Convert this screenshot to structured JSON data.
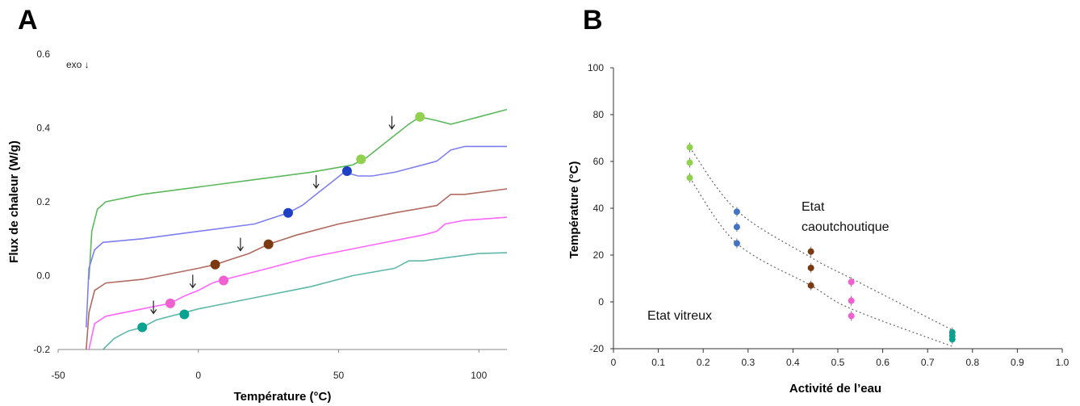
{
  "panels": {
    "A": {
      "letter": "A"
    },
    "B": {
      "letter": "B"
    }
  },
  "colors": {
    "light_green": "#92d050",
    "blue": "#1f3fc4",
    "brown": "#7b3a10",
    "pink": "#f060d0",
    "teal": "#0aa290",
    "mid_blue": "#4472c4"
  },
  "chart_data": [
    {
      "type": "line",
      "panel": "A",
      "xlabel": "Température (°C)",
      "ylabel": "Flux de chaleur (W/g)",
      "xlim": [
        -50,
        110
      ],
      "ylim": [
        -0.2,
        0.6
      ],
      "x_ticks": [
        -50,
        0,
        50,
        100
      ],
      "y_ticks": [
        -0.2,
        0.0,
        0.2,
        0.4,
        0.6
      ],
      "y_tick_labels": [
        "-0.2",
        "0.0",
        "0.2",
        "0.4",
        "0.6"
      ],
      "annotation": "exo ↓",
      "grid": false,
      "series": [
        {
          "color": "#5cb85c",
          "points": [
            [
              -39,
              -0.01
            ],
            [
              -38,
              0.12
            ],
            [
              -36,
              0.18
            ],
            [
              -33,
              0.2
            ],
            [
              -20,
              0.22
            ],
            [
              0,
              0.24
            ],
            [
              20,
              0.26
            ],
            [
              40,
              0.28
            ],
            [
              55,
              0.3
            ],
            [
              60,
              0.32
            ],
            [
              65,
              0.35
            ],
            [
              70,
              0.38
            ],
            [
              75,
              0.41
            ],
            [
              79,
              0.43
            ],
            [
              85,
              0.42
            ],
            [
              90,
              0.41
            ],
            [
              95,
              0.42
            ],
            [
              100,
              0.43
            ],
            [
              110,
              0.45
            ]
          ],
          "markers": [
            {
              "x": 58,
              "y": 0.315,
              "color": "#92d050"
            },
            {
              "x": 79,
              "y": 0.43,
              "color": "#92d050"
            }
          ],
          "arrow": {
            "x": 69,
            "y": 0.38
          }
        },
        {
          "color": "#7f7ff0",
          "points": [
            [
              -40,
              -0.14
            ],
            [
              -39,
              0.02
            ],
            [
              -37,
              0.07
            ],
            [
              -34,
              0.09
            ],
            [
              -20,
              0.1
            ],
            [
              0,
              0.12
            ],
            [
              20,
              0.14
            ],
            [
              32,
              0.17
            ],
            [
              37,
              0.19
            ],
            [
              42,
              0.22
            ],
            [
              47,
              0.25
            ],
            [
              52,
              0.28
            ],
            [
              57,
              0.27
            ],
            [
              62,
              0.27
            ],
            [
              70,
              0.28
            ],
            [
              80,
              0.3
            ],
            [
              85,
              0.31
            ],
            [
              90,
              0.34
            ],
            [
              95,
              0.35
            ],
            [
              110,
              0.35
            ]
          ],
          "markers": [
            {
              "x": 32,
              "y": 0.17,
              "color": "#1f3fc4"
            },
            {
              "x": 53,
              "y": 0.283,
              "color": "#1f3fc4"
            }
          ],
          "arrow": {
            "x": 42,
            "y": 0.22
          }
        },
        {
          "color": "#b06a60",
          "points": [
            [
              -40,
              -0.2
            ],
            [
              -39,
              -0.1
            ],
            [
              -37,
              -0.04
            ],
            [
              -33,
              -0.02
            ],
            [
              -20,
              -0.01
            ],
            [
              0,
              0.02
            ],
            [
              6,
              0.03
            ],
            [
              12,
              0.045
            ],
            [
              18,
              0.06
            ],
            [
              25,
              0.085
            ],
            [
              35,
              0.11
            ],
            [
              50,
              0.14
            ],
            [
              70,
              0.17
            ],
            [
              85,
              0.19
            ],
            [
              90,
              0.22
            ],
            [
              95,
              0.22
            ],
            [
              110,
              0.235
            ]
          ],
          "markers": [
            {
              "x": 6,
              "y": 0.03,
              "color": "#7b3a10"
            },
            {
              "x": 25,
              "y": 0.085,
              "color": "#7b3a10"
            }
          ],
          "arrow": {
            "x": 15,
            "y": 0.05
          }
        },
        {
          "color": "#ff66ff",
          "points": [
            [
              -39,
              -0.2
            ],
            [
              -37,
              -0.13
            ],
            [
              -33,
              -0.11
            ],
            [
              -20,
              -0.09
            ],
            [
              -10,
              -0.075
            ],
            [
              -5,
              -0.055
            ],
            [
              0,
              -0.04
            ],
            [
              5,
              -0.02
            ],
            [
              8,
              -0.013
            ],
            [
              20,
              0.01
            ],
            [
              40,
              0.05
            ],
            [
              60,
              0.08
            ],
            [
              80,
              0.11
            ],
            [
              85,
              0.12
            ],
            [
              88,
              0.14
            ],
            [
              95,
              0.15
            ],
            [
              110,
              0.158
            ]
          ],
          "markers": [
            {
              "x": -10,
              "y": -0.075,
              "color": "#f060d0"
            },
            {
              "x": 9,
              "y": -0.013,
              "color": "#f060d0"
            }
          ],
          "arrow": {
            "x": -2,
            "y": -0.05
          }
        },
        {
          "color": "#5fb8a8",
          "points": [
            [
              -34,
              -0.2
            ],
            [
              -30,
              -0.17
            ],
            [
              -25,
              -0.15
            ],
            [
              -20,
              -0.14
            ],
            [
              -15,
              -0.12
            ],
            [
              -10,
              -0.11
            ],
            [
              -5,
              -0.1
            ],
            [
              0,
              -0.09
            ],
            [
              20,
              -0.06
            ],
            [
              40,
              -0.03
            ],
            [
              55,
              0.0
            ],
            [
              70,
              0.02
            ],
            [
              75,
              0.04
            ],
            [
              80,
              0.04
            ],
            [
              90,
              0.05
            ],
            [
              100,
              0.06
            ],
            [
              110,
              0.062
            ]
          ],
          "markers": [
            {
              "x": -20,
              "y": -0.14,
              "color": "#0aa290"
            },
            {
              "x": -5,
              "y": -0.105,
              "color": "#0aa290"
            }
          ],
          "arrow": {
            "x": -16,
            "y": -0.12
          }
        }
      ]
    },
    {
      "type": "scatter",
      "panel": "B",
      "xlabel": "Activité de l’eau",
      "ylabel": "Température (°C)",
      "xlim": [
        0,
        1.0
      ],
      "ylim": [
        -20,
        100
      ],
      "x_ticks": [
        0,
        0.1,
        0.2,
        0.3,
        0.4,
        0.5,
        0.6,
        0.7,
        0.8,
        0.9,
        1.0
      ],
      "x_tick_labels": [
        "0",
        "0.1",
        "0.2",
        "0.3",
        "0.4",
        "0.5",
        "0.6",
        "0.7",
        "0.8",
        "0.9",
        "1.0"
      ],
      "y_ticks": [
        -20,
        0,
        20,
        40,
        60,
        80,
        100
      ],
      "grid": false,
      "annotations": [
        {
          "text": "Etat",
          "x": 0.4,
          "y": 40
        },
        {
          "text": "caoutchoutique",
          "x": 0.4,
          "y": 30
        },
        {
          "text": "Etat vitreux",
          "x": 0.07,
          "y": -6
        }
      ],
      "series": [
        {
          "color": "#92d050",
          "points": [
            [
              0.17,
              66
            ],
            [
              0.17,
              59.5
            ],
            [
              0.17,
              53
            ]
          ]
        },
        {
          "color": "#4472c4",
          "points": [
            [
              0.275,
              38.5
            ],
            [
              0.275,
              32
            ],
            [
              0.275,
              25
            ]
          ]
        },
        {
          "color": "#7b3a10",
          "points": [
            [
              0.44,
              21.5
            ],
            [
              0.44,
              14.5
            ],
            [
              0.44,
              7
            ]
          ]
        },
        {
          "color": "#f060d0",
          "points": [
            [
              0.53,
              8.5
            ],
            [
              0.53,
              0.5
            ],
            [
              0.53,
              -6
            ]
          ]
        },
        {
          "color": "#0aa290",
          "points": [
            [
              0.755,
              -13
            ],
            [
              0.755,
              -14.5
            ],
            [
              0.755,
              -16
            ]
          ]
        }
      ],
      "fit_curves": [
        {
          "style": "dotted",
          "points": [
            [
              0.17,
              66
            ],
            [
              0.275,
              39
            ],
            [
              0.44,
              19
            ],
            [
              0.53,
              10
            ],
            [
              0.755,
              -12
            ]
          ]
        },
        {
          "style": "dotted",
          "points": [
            [
              0.17,
              53
            ],
            [
              0.275,
              25
            ],
            [
              0.44,
              7
            ],
            [
              0.53,
              -3
            ],
            [
              0.755,
              -19
            ]
          ]
        }
      ]
    }
  ]
}
